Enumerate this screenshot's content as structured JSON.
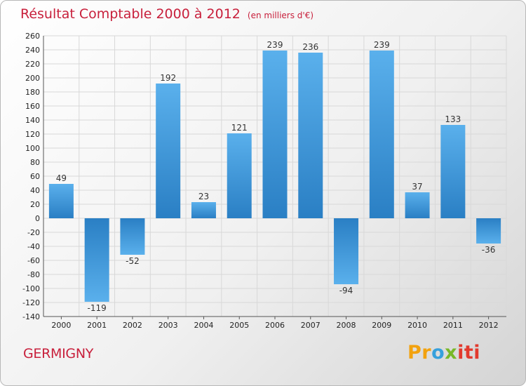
{
  "title": {
    "main": "Résultat Comptable 2000 à 2012",
    "sub": "(en milliers d'€)"
  },
  "commune": "GERMIGNY",
  "logo": {
    "text": "Proxiti",
    "parts": [
      "Pr",
      "o",
      "x",
      "iti"
    ]
  },
  "colors": {
    "title": "#c8203c",
    "bar_light": "#5ab0ec",
    "bar_dark": "#2a7fc4",
    "grid": "#d8d8d8",
    "axis_text": "#222222"
  },
  "chart_data": {
    "type": "bar",
    "categories": [
      "2000",
      "2001",
      "2002",
      "2003",
      "2004",
      "2005",
      "2006",
      "2007",
      "2008",
      "2009",
      "2010",
      "2011",
      "2012"
    ],
    "values": [
      49,
      -119,
      -52,
      192,
      23,
      121,
      239,
      236,
      -94,
      239,
      37,
      133,
      -36
    ],
    "data_labels": [
      "49",
      "-119",
      "-52",
      "192",
      "23",
      "121",
      "239",
      "236",
      "-94",
      "239",
      "37",
      "133",
      "-36"
    ],
    "ylim": [
      -140,
      260
    ],
    "ytick_step": 20,
    "yticks": [
      "260",
      "240",
      "220",
      "200",
      "180",
      "160",
      "140",
      "120",
      "100",
      "80",
      "60",
      "40",
      "20",
      "0",
      "-20",
      "-40",
      "-60",
      "-80",
      "-100",
      "-120",
      "-140"
    ],
    "grid": true,
    "legend": "none"
  }
}
